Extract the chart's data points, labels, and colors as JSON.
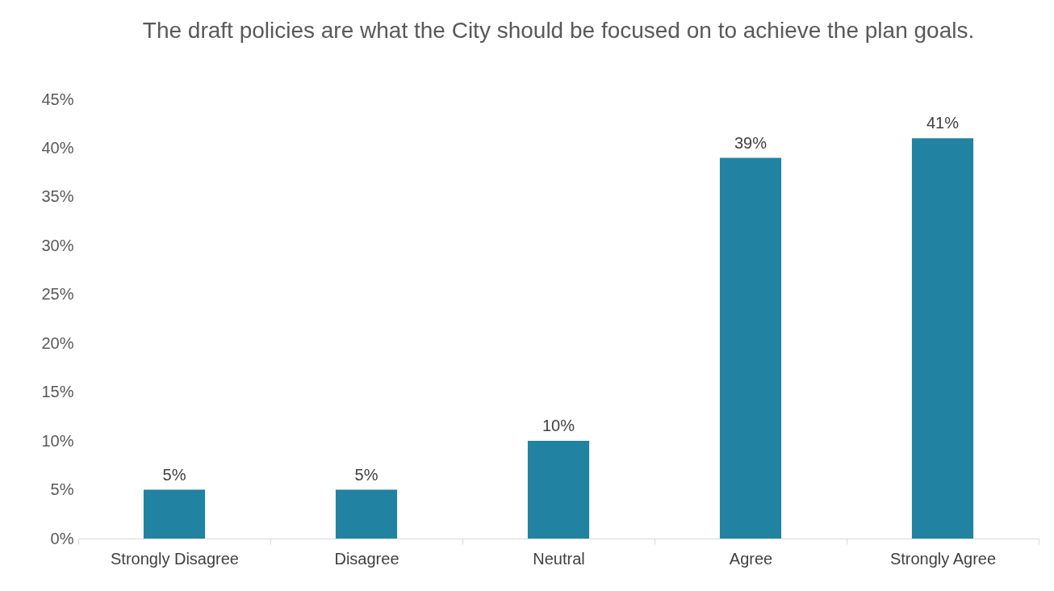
{
  "chart_data": {
    "type": "bar",
    "title": "The draft policies are what the City should be focused on to achieve the plan goals.",
    "categories": [
      "Strongly Disagree",
      "Disagree",
      "Neutral",
      "Agree",
      "Strongly Agree"
    ],
    "values": [
      5,
      5,
      10,
      39,
      41
    ],
    "color": "#2282a1",
    "value_labels": [
      "5%",
      "5%",
      "10%",
      "39%",
      "41%"
    ],
    "ylim": [
      0,
      45
    ],
    "yticks": [
      {
        "value": 0,
        "label": "0%"
      },
      {
        "value": 5,
        "label": "5%"
      },
      {
        "value": 10,
        "label": "10%"
      },
      {
        "value": 15,
        "label": "15%"
      },
      {
        "value": 20,
        "label": "20%"
      },
      {
        "value": 25,
        "label": "25%"
      },
      {
        "value": 30,
        "label": "30%"
      },
      {
        "value": 35,
        "label": "35%"
      },
      {
        "value": 40,
        "label": "40%"
      },
      {
        "value": 45,
        "label": "45%"
      }
    ],
    "grid": false
  }
}
